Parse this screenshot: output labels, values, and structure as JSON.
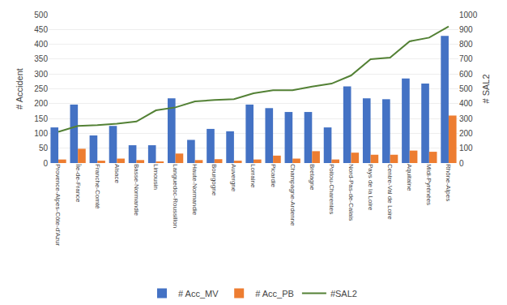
{
  "chart_data": {
    "type": "bar",
    "categories": [
      "Provence-Alpes-Côte-d'Azur",
      "Île-de-France",
      "Franche-Comté",
      "Alsace",
      "Basse-Normandie",
      "Limousin",
      "Languedoc-Roussillon",
      "Haute-Normandie",
      "Bourgogne",
      "Auvergne",
      "Lorraine",
      "Picardie",
      "Champagne-Ardenne",
      "Bretagne",
      "Poitou-Charentes",
      "Nord-Pas-de-Calais",
      "Pays de la Loire",
      "Centre-Val de Loire",
      "Aquitaine",
      "Midi-Pyrénées",
      "Rhône-Alpes"
    ],
    "series": [
      {
        "name": "# Acc_MV",
        "color": "#4472c4",
        "values": [
          120,
          197,
          93,
          125,
          60,
          60,
          218,
          78,
          115,
          107,
          197,
          185,
          172,
          172,
          120,
          258,
          218,
          215,
          285,
          268,
          428
        ]
      },
      {
        "name": "# Acc_PB",
        "color": "#ed7d31",
        "values": [
          12,
          48,
          8,
          15,
          10,
          5,
          32,
          10,
          13,
          8,
          12,
          25,
          15,
          40,
          12,
          35,
          28,
          28,
          42,
          38,
          160
        ]
      },
      {
        "name": "#SAL2",
        "type": "line",
        "axis": "y2",
        "color": "#538135",
        "values": [
          210,
          250,
          255,
          265,
          280,
          355,
          375,
          415,
          425,
          430,
          470,
          490,
          490,
          515,
          535,
          590,
          700,
          710,
          820,
          845,
          920
        ]
      }
    ],
    "ylabel": "# Accident",
    "y2label": "# SAL2",
    "ylim": [
      0,
      500
    ],
    "yticks": [
      0,
      50,
      100,
      150,
      200,
      250,
      300,
      350,
      400,
      450,
      500
    ],
    "y2lim": [
      0,
      1000
    ],
    "y2ticks": [
      0,
      100,
      200,
      300,
      400,
      500,
      600,
      700,
      800,
      900,
      1000
    ],
    "grid": true,
    "legend": "bottom"
  }
}
